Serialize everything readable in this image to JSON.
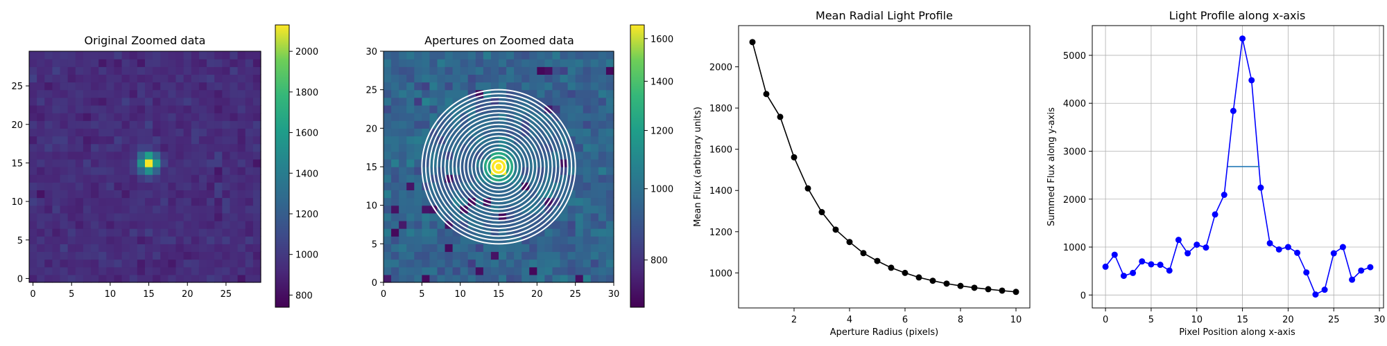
{
  "chart_data": [
    {
      "type": "heatmap",
      "title": "Original Zoomed data",
      "xlim": [
        0,
        29
      ],
      "ylim": [
        0,
        29
      ],
      "xticks": [
        "0",
        "5",
        "10",
        "15",
        "20",
        "25"
      ],
      "yticks": [
        "0",
        "5",
        "10",
        "15",
        "20",
        "25"
      ],
      "colormap": "viridis",
      "colorbar": {
        "ticks": [
          "800",
          "1000",
          "1200",
          "1400",
          "1600",
          "1800",
          "2000"
        ],
        "range": [
          740,
          2130
        ]
      },
      "peak": {
        "x": 15,
        "y": 15,
        "value": 2120
      },
      "background_level": 940
    },
    {
      "type": "heatmap",
      "title": "Apertures on Zoomed data",
      "xlim": [
        0,
        30
      ],
      "ylim": [
        0,
        30
      ],
      "xticks": [
        "0",
        "5",
        "10",
        "15",
        "20",
        "25",
        "30"
      ],
      "yticks": [
        "0",
        "5",
        "10",
        "15",
        "20",
        "25",
        "30"
      ],
      "colormap": "viridis",
      "colorbar": {
        "ticks": [
          "800",
          "1000",
          "1200",
          "1400",
          "1600"
        ],
        "scale": "log",
        "range": [
          690,
          1670
        ]
      },
      "aperture_center": [
        15,
        15
      ],
      "aperture_radii": [
        0.5,
        1,
        1.5,
        2,
        2.5,
        3,
        3.5,
        4,
        4.5,
        5,
        5.5,
        6,
        6.5,
        7,
        7.5,
        8,
        8.5,
        9,
        9.5,
        10
      ],
      "aperture_color": "#ffffff"
    },
    {
      "type": "line",
      "title": "Mean Radial Light Profile",
      "xlabel": "Aperture Radius (pixels)",
      "ylabel": "Mean Flux (arbitrary units)",
      "xlim": [
        -0.0,
        10.5
      ],
      "ylim": [
        830,
        2200
      ],
      "xticks": [
        "2",
        "4",
        "6",
        "8",
        "10"
      ],
      "yticks": [
        "1000",
        "1200",
        "1400",
        "1600",
        "1800",
        "2000"
      ],
      "color": "#000000",
      "x": [
        0.5,
        1,
        1.5,
        2,
        2.5,
        3,
        3.5,
        4,
        4.5,
        5,
        5.5,
        6,
        6.5,
        7,
        7.5,
        8,
        8.5,
        9,
        9.5,
        10
      ],
      "y": [
        2120,
        1868,
        1757,
        1561,
        1410,
        1295,
        1210,
        1150,
        1096,
        1058,
        1025,
        1000,
        978,
        962,
        948,
        937,
        928,
        921,
        914,
        908
      ]
    },
    {
      "type": "line",
      "title": "Light Profile along x-axis",
      "xlabel": "Pixel Position along x-axis",
      "ylabel": "Summed Flux along y-axis",
      "xlim": [
        -1.45,
        30.45
      ],
      "ylim": [
        -270,
        5620
      ],
      "xticks": [
        "0",
        "5",
        "10",
        "15",
        "20",
        "25",
        "30"
      ],
      "yticks": [
        "0",
        "1000",
        "2000",
        "3000",
        "4000",
        "5000"
      ],
      "grid": true,
      "color": "#0000ff",
      "x": [
        0,
        1,
        2,
        3,
        4,
        5,
        6,
        7,
        8,
        9,
        10,
        11,
        12,
        13,
        14,
        15,
        16,
        17,
        18,
        19,
        20,
        21,
        22,
        23,
        24,
        25,
        26,
        27,
        28,
        29
      ],
      "y": [
        590,
        840,
        400,
        460,
        700,
        640,
        630,
        510,
        1150,
        870,
        1050,
        990,
        1680,
        2090,
        3840,
        5350,
        4480,
        2240,
        1080,
        950,
        1000,
        880,
        470,
        10,
        110,
        870,
        1000,
        320,
        510,
        580
      ],
      "fwhm_line": {
        "x": [
          13.4,
          16.9
        ],
        "y": 2680,
        "color": "#1f77b4"
      }
    }
  ]
}
